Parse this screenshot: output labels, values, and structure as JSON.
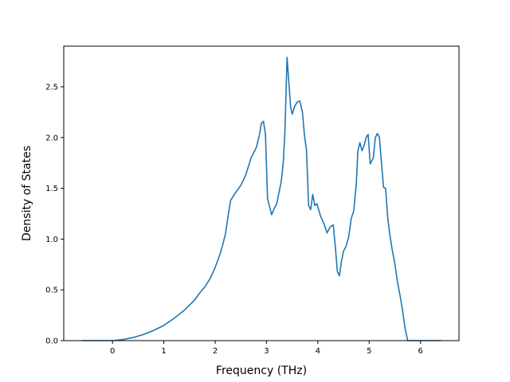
{
  "chart_data": {
    "type": "line",
    "title": "",
    "xlabel": "Frequency (THz)",
    "ylabel": "Density of States",
    "xlim": [
      -0.95,
      6.75
    ],
    "ylim": [
      0,
      2.9
    ],
    "xticks": [
      0,
      1,
      2,
      3,
      4,
      5,
      6
    ],
    "xtick_labels": [
      "0",
      "1",
      "2",
      "3",
      "4",
      "5",
      "6"
    ],
    "yticks": [
      0.0,
      0.5,
      1.0,
      1.5,
      2.0,
      2.5
    ],
    "ytick_labels": [
      "0.0",
      "0.5",
      "1.0",
      "1.5",
      "2.0",
      "2.5"
    ],
    "grid": false,
    "series": [
      {
        "color": "#1f77b4",
        "x": [
          -0.6,
          0.0,
          0.2,
          0.4,
          0.6,
          0.8,
          1.0,
          1.2,
          1.4,
          1.6,
          1.7,
          1.8,
          1.9,
          2.0,
          2.1,
          2.15,
          2.2,
          2.25,
          2.3,
          2.4,
          2.5,
          2.55,
          2.6,
          2.7,
          2.75,
          2.8,
          2.83,
          2.86,
          2.9,
          2.94,
          2.98,
          3.02,
          3.1,
          3.15,
          3.2,
          3.24,
          3.28,
          3.3,
          3.33,
          3.36,
          3.4,
          3.47,
          3.5,
          3.55,
          3.6,
          3.65,
          3.7,
          3.74,
          3.78,
          3.82,
          3.86,
          3.9,
          3.94,
          3.98,
          4.05,
          4.12,
          4.18,
          4.24,
          4.3,
          4.34,
          4.38,
          4.42,
          4.46,
          4.5,
          4.55,
          4.6,
          4.65,
          4.7,
          4.75,
          4.78,
          4.82,
          4.86,
          4.9,
          4.94,
          4.98,
          5.02,
          5.08,
          5.12,
          5.16,
          5.2,
          5.24,
          5.28,
          5.32,
          5.36,
          5.4,
          5.45,
          5.5,
          5.55,
          5.6,
          5.65,
          5.7,
          5.75,
          5.8,
          5.84,
          6.0,
          6.4
        ],
        "y": [
          0.0,
          0.0,
          0.01,
          0.03,
          0.06,
          0.1,
          0.15,
          0.22,
          0.3,
          0.4,
          0.47,
          0.53,
          0.61,
          0.72,
          0.86,
          0.95,
          1.05,
          1.22,
          1.38,
          1.46,
          1.53,
          1.58,
          1.64,
          1.8,
          1.85,
          1.9,
          1.96,
          2.02,
          2.14,
          2.16,
          2.03,
          1.4,
          1.24,
          1.3,
          1.35,
          1.45,
          1.55,
          1.62,
          1.78,
          2.08,
          2.79,
          2.3,
          2.23,
          2.31,
          2.35,
          2.36,
          2.25,
          2.02,
          1.87,
          1.33,
          1.29,
          1.44,
          1.33,
          1.35,
          1.23,
          1.15,
          1.06,
          1.12,
          1.14,
          0.93,
          0.68,
          0.64,
          0.78,
          0.88,
          0.93,
          1.02,
          1.2,
          1.28,
          1.55,
          1.87,
          1.95,
          1.87,
          1.92,
          2.0,
          2.03,
          1.74,
          1.8,
          2.0,
          2.04,
          2.0,
          1.75,
          1.51,
          1.5,
          1.22,
          1.05,
          0.89,
          0.76,
          0.58,
          0.45,
          0.3,
          0.12,
          0.0,
          0.0,
          0.0,
          0.0,
          0.0
        ]
      }
    ]
  }
}
